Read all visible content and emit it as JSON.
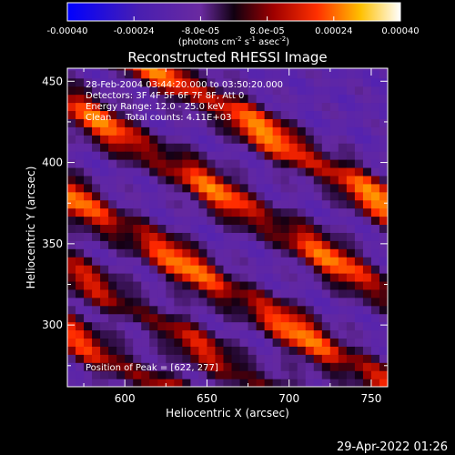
{
  "chart_data": {
    "type": "heatmap",
    "title": "Reconstructed RHESSI Image",
    "xlabel": "Heliocentric X (arcsec)",
    "ylabel": "Heliocentric Y (arcsec)",
    "xlim": [
      565,
      760
    ],
    "ylim": [
      262,
      458
    ],
    "x_ticks": [
      600,
      650,
      700,
      750
    ],
    "x_tick_labels": [
      "600",
      "650",
      "700",
      "750"
    ],
    "y_ticks": [
      300,
      350,
      400,
      450
    ],
    "y_tick_labels": [
      "300",
      "350",
      "400",
      "450"
    ],
    "colorbar": {
      "range": [
        -0.0004,
        0.0004
      ],
      "ticks": [
        -0.0004,
        -0.00024,
        -8e-05,
        8e-05,
        0.00024,
        0.0004
      ],
      "tick_labels": [
        "-0.00040",
        "-0.00024",
        "-8.0e-05",
        "8.0e-05",
        "0.00024",
        "0.00040"
      ],
      "units_prefix": "(photons cm",
      "units_exp1": "-2",
      "units_mid1": " s",
      "units_exp2": "-1",
      "units_mid2": " asec",
      "units_exp3": "-2",
      "units_suffix": ")"
    },
    "annotations": [
      "28-Feb-2004 03:44:20.000 to 03:50:20.000",
      "Detectors: 3F 4F 5F 6F 7F 8F, Att 0",
      "Energy Range: 12.0 - 25.0 keV",
      "Clean     Total counts: 4.11E+03"
    ],
    "peak_label": "Position of Peak = [622, 277]",
    "peak": [
      622,
      277
    ],
    "stripes": [
      {
        "name": "",
        "intercept": 491,
        "amplitude": 0.0004
      },
      {
        "name": "",
        "intercept": 437,
        "amplitude": 0.00036
      },
      {
        "name": "",
        "intercept": 380,
        "amplitude": 0.00038
      },
      {
        "name": "",
        "intercept": 335,
        "amplitude": 0.00026
      },
      {
        "name": "",
        "intercept": 295,
        "amplitude": 0.0003
      }
    ],
    "stripe_slope": -0.6,
    "grid": false,
    "legend": "none"
  },
  "footer": {
    "timestamp": "29-Apr-2022 01:26"
  }
}
